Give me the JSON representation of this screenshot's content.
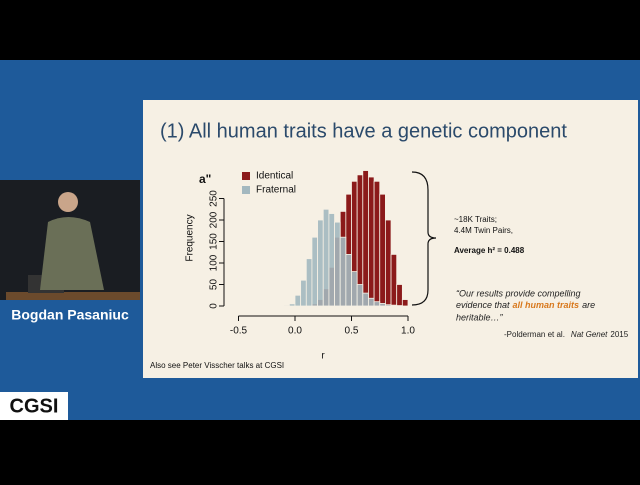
{
  "speaker_name": "Bogdan Pasaniuc",
  "logo": "CGSI",
  "slide": {
    "title": "(1) All human traits have a genetic component",
    "panel_label": "a\"",
    "annotation": [
      "~18K Traits;",
      "4.4M Twin Pairs,",
      "Average h² = 0.488"
    ],
    "quote": {
      "line1": "“Our results provide compelling",
      "line2_before": "evidence that",
      "highlight": "all human traits",
      "line2_after": "are",
      "line3": "heritable…”"
    },
    "citation": {
      "authors": "-Polderman et al.",
      "journal": "Nat Genet",
      "year": "2015"
    },
    "footnote": "Also see Peter Visscher talks at CGSI"
  },
  "chart_data": {
    "type": "histogram",
    "x_label": "r",
    "y_label": "Frequency",
    "bins": [
      -0.2,
      -0.15,
      -0.1,
      -0.05,
      0,
      0.05,
      0.1,
      0.15,
      0.2,
      0.25,
      0.3,
      0.35,
      0.4,
      0.45,
      0.5,
      0.55,
      0.6,
      0.65,
      0.7,
      0.75,
      0.8,
      0.85,
      0.9,
      0.95,
      1.0
    ],
    "series": [
      {
        "name": "Identical",
        "color": "#8b1a1a",
        "values": [
          0,
          0,
          0,
          0,
          0,
          0,
          2,
          5,
          15,
          40,
          90,
          160,
          220,
          260,
          290,
          305,
          315,
          300,
          290,
          260,
          200,
          120,
          50,
          15
        ]
      },
      {
        "name": "Fraternal",
        "color": "#a3b8bf",
        "values": [
          1,
          1,
          2,
          5,
          25,
          60,
          110,
          160,
          200,
          225,
          215,
          195,
          160,
          120,
          80,
          50,
          30,
          18,
          10,
          6,
          3,
          2,
          1,
          0
        ]
      }
    ],
    "xlim": [
      -0.55,
      1.05
    ],
    "ylim": [
      0,
      320
    ],
    "xticks": [
      -0.5,
      {
        "value": 0,
        "label": "0.0"
      },
      0.5,
      {
        "value": 1,
        "label": "1.0"
      }
    ],
    "yticks": [
      0,
      50,
      100,
      150,
      200,
      250
    ],
    "legend": "top-left"
  }
}
